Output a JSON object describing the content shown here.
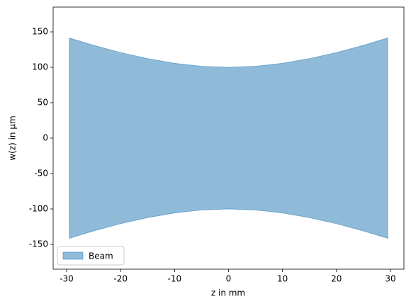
{
  "chart_data": {
    "type": "area",
    "x_label": "z in mm",
    "y_label": "w(z) in µm",
    "x": [
      -29.5,
      -25,
      -20,
      -15,
      -10,
      -5,
      0,
      5,
      10,
      15,
      20,
      25,
      29.5
    ],
    "series": [
      {
        "name": "Beam",
        "color": "#1f77b4",
        "values": [
          141.4,
          131.0,
          120.8,
          112.2,
          105.6,
          101.4,
          100,
          101.4,
          105.6,
          112.2,
          120.8,
          131.0,
          141.4
        ],
        "lower": [
          -141.4,
          -131.0,
          -120.8,
          -112.2,
          -105.6,
          -101.4,
          -100,
          -101.4,
          -105.6,
          -112.2,
          -120.8,
          -131.0,
          -141.4
        ]
      }
    ],
    "xlim": [
      -32.5,
      32.5
    ],
    "ylim": [
      -185,
      185
    ],
    "xticks": [
      -30,
      -20,
      -10,
      0,
      10,
      20,
      30
    ],
    "yticks": [
      -150,
      -100,
      -50,
      0,
      50,
      100,
      150
    ],
    "legend": "lower left"
  }
}
